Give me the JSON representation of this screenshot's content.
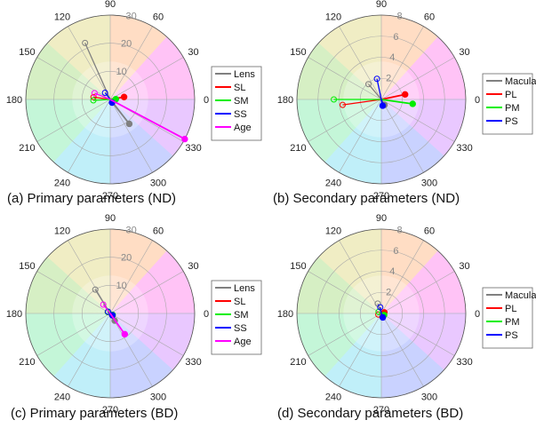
{
  "chart_data": [
    {
      "type": "polar",
      "caption": "(a) Primary parameters (ND)",
      "rlim": [
        0,
        30
      ],
      "rticks": [
        10,
        20,
        30
      ],
      "theta_ticks": [
        0,
        30,
        60,
        90,
        120,
        150,
        180,
        210,
        240,
        270,
        300,
        330
      ],
      "colored_background": true,
      "legend_position": "right",
      "series": [
        {
          "name": "Lens",
          "color": "#808080",
          "points": [
            {
              "theta": 114,
              "r": 22
            },
            {
              "theta": 308,
              "r": 11
            }
          ]
        },
        {
          "name": "SL",
          "color": "#ff0000",
          "points": [
            {
              "theta": 172,
              "r": 6
            },
            {
              "theta": 10,
              "r": 5
            }
          ]
        },
        {
          "name": "SM",
          "color": "#00ee00",
          "points": [
            {
              "theta": 183,
              "r": 6
            },
            {
              "theta": 3,
              "r": 2
            }
          ]
        },
        {
          "name": "SS",
          "color": "#0000ff",
          "points": [
            {
              "theta": 128,
              "r": 3
            },
            {
              "theta": 300,
              "r": 1.3
            }
          ]
        },
        {
          "name": "Age",
          "color": "#ff00ff",
          "points": [
            {
              "theta": 158,
              "r": 6
            },
            {
              "theta": 332,
              "r": 30
            }
          ]
        }
      ]
    },
    {
      "type": "polar",
      "caption": "(b) Secondary parameters (ND)",
      "rlim": [
        0,
        8
      ],
      "rticks": [
        2,
        4,
        6,
        8
      ],
      "theta_ticks": [
        0,
        30,
        60,
        90,
        120,
        150,
        180,
        210,
        240,
        270,
        300,
        330
      ],
      "colored_background": true,
      "legend_position": "right",
      "series": [
        {
          "name": "Macula",
          "color": "#808080",
          "points": [
            {
              "theta": 130,
              "r": 1.9
            },
            {
              "theta": 300,
              "r": 0.6
            }
          ]
        },
        {
          "name": "PL",
          "color": "#ff0000",
          "points": [
            {
              "theta": 188,
              "r": 3.7
            },
            {
              "theta": 12,
              "r": 2.3
            }
          ]
        },
        {
          "name": "PM",
          "color": "#00ee00",
          "points": [
            {
              "theta": 180,
              "r": 4.5
            },
            {
              "theta": 352,
              "r": 3.0
            }
          ]
        },
        {
          "name": "PS",
          "color": "#0000ff",
          "points": [
            {
              "theta": 102,
              "r": 2.0
            },
            {
              "theta": 282,
              "r": 0.6
            }
          ]
        }
      ]
    },
    {
      "type": "polar",
      "caption": "(c) Primary parameters (BD)",
      "rlim": [
        0,
        30
      ],
      "rticks": [
        10,
        20,
        30
      ],
      "theta_ticks": [
        0,
        30,
        60,
        90,
        120,
        150,
        180,
        210,
        240,
        270,
        300,
        330
      ],
      "colored_background": true,
      "legend_position": "right",
      "series": [
        {
          "name": "Lens",
          "color": "#808080",
          "points": [
            {
              "theta": 122,
              "r": 10
            },
            {
              "theta": 302,
              "r": 3
            }
          ]
        },
        {
          "name": "SL",
          "color": "#ff0000",
          "points": [
            {
              "theta": 150,
              "r": 1
            },
            {
              "theta": 320,
              "r": 1
            }
          ]
        },
        {
          "name": "SM",
          "color": "#00ee00",
          "points": [
            {
              "theta": 150,
              "r": 1
            },
            {
              "theta": 330,
              "r": 1
            }
          ]
        },
        {
          "name": "SS",
          "color": "#0000ff",
          "points": [
            {
              "theta": 140,
              "r": 1
            },
            {
              "theta": 320,
              "r": 1
            }
          ]
        },
        {
          "name": "Age",
          "color": "#ff00ff",
          "points": [
            {
              "theta": 128,
              "r": 4
            },
            {
              "theta": 305,
              "r": 9
            }
          ]
        }
      ]
    },
    {
      "type": "polar",
      "caption": "(d) Secondary parameters (BD)",
      "rlim": [
        0,
        8
      ],
      "rticks": [
        2,
        4,
        6,
        8
      ],
      "theta_ticks": [
        0,
        30,
        60,
        90,
        120,
        150,
        180,
        210,
        240,
        270,
        300,
        330
      ],
      "colored_background": true,
      "legend_position": "right",
      "series": [
        {
          "name": "Macula",
          "color": "#808080",
          "points": [
            {
              "theta": 110,
              "r": 1.0
            },
            {
              "theta": 290,
              "r": 0.3
            }
          ]
        },
        {
          "name": "PL",
          "color": "#ff0000",
          "points": [
            {
              "theta": 200,
              "r": 0.3
            },
            {
              "theta": 20,
              "r": 0.3
            }
          ]
        },
        {
          "name": "PM",
          "color": "#00ee00",
          "points": [
            {
              "theta": 150,
              "r": 0.3
            },
            {
              "theta": 330,
              "r": 0.3
            }
          ]
        },
        {
          "name": "PS",
          "color": "#0000ff",
          "points": [
            {
              "theta": 100,
              "r": 0.6
            },
            {
              "theta": 290,
              "r": 0.4
            }
          ]
        }
      ]
    }
  ]
}
